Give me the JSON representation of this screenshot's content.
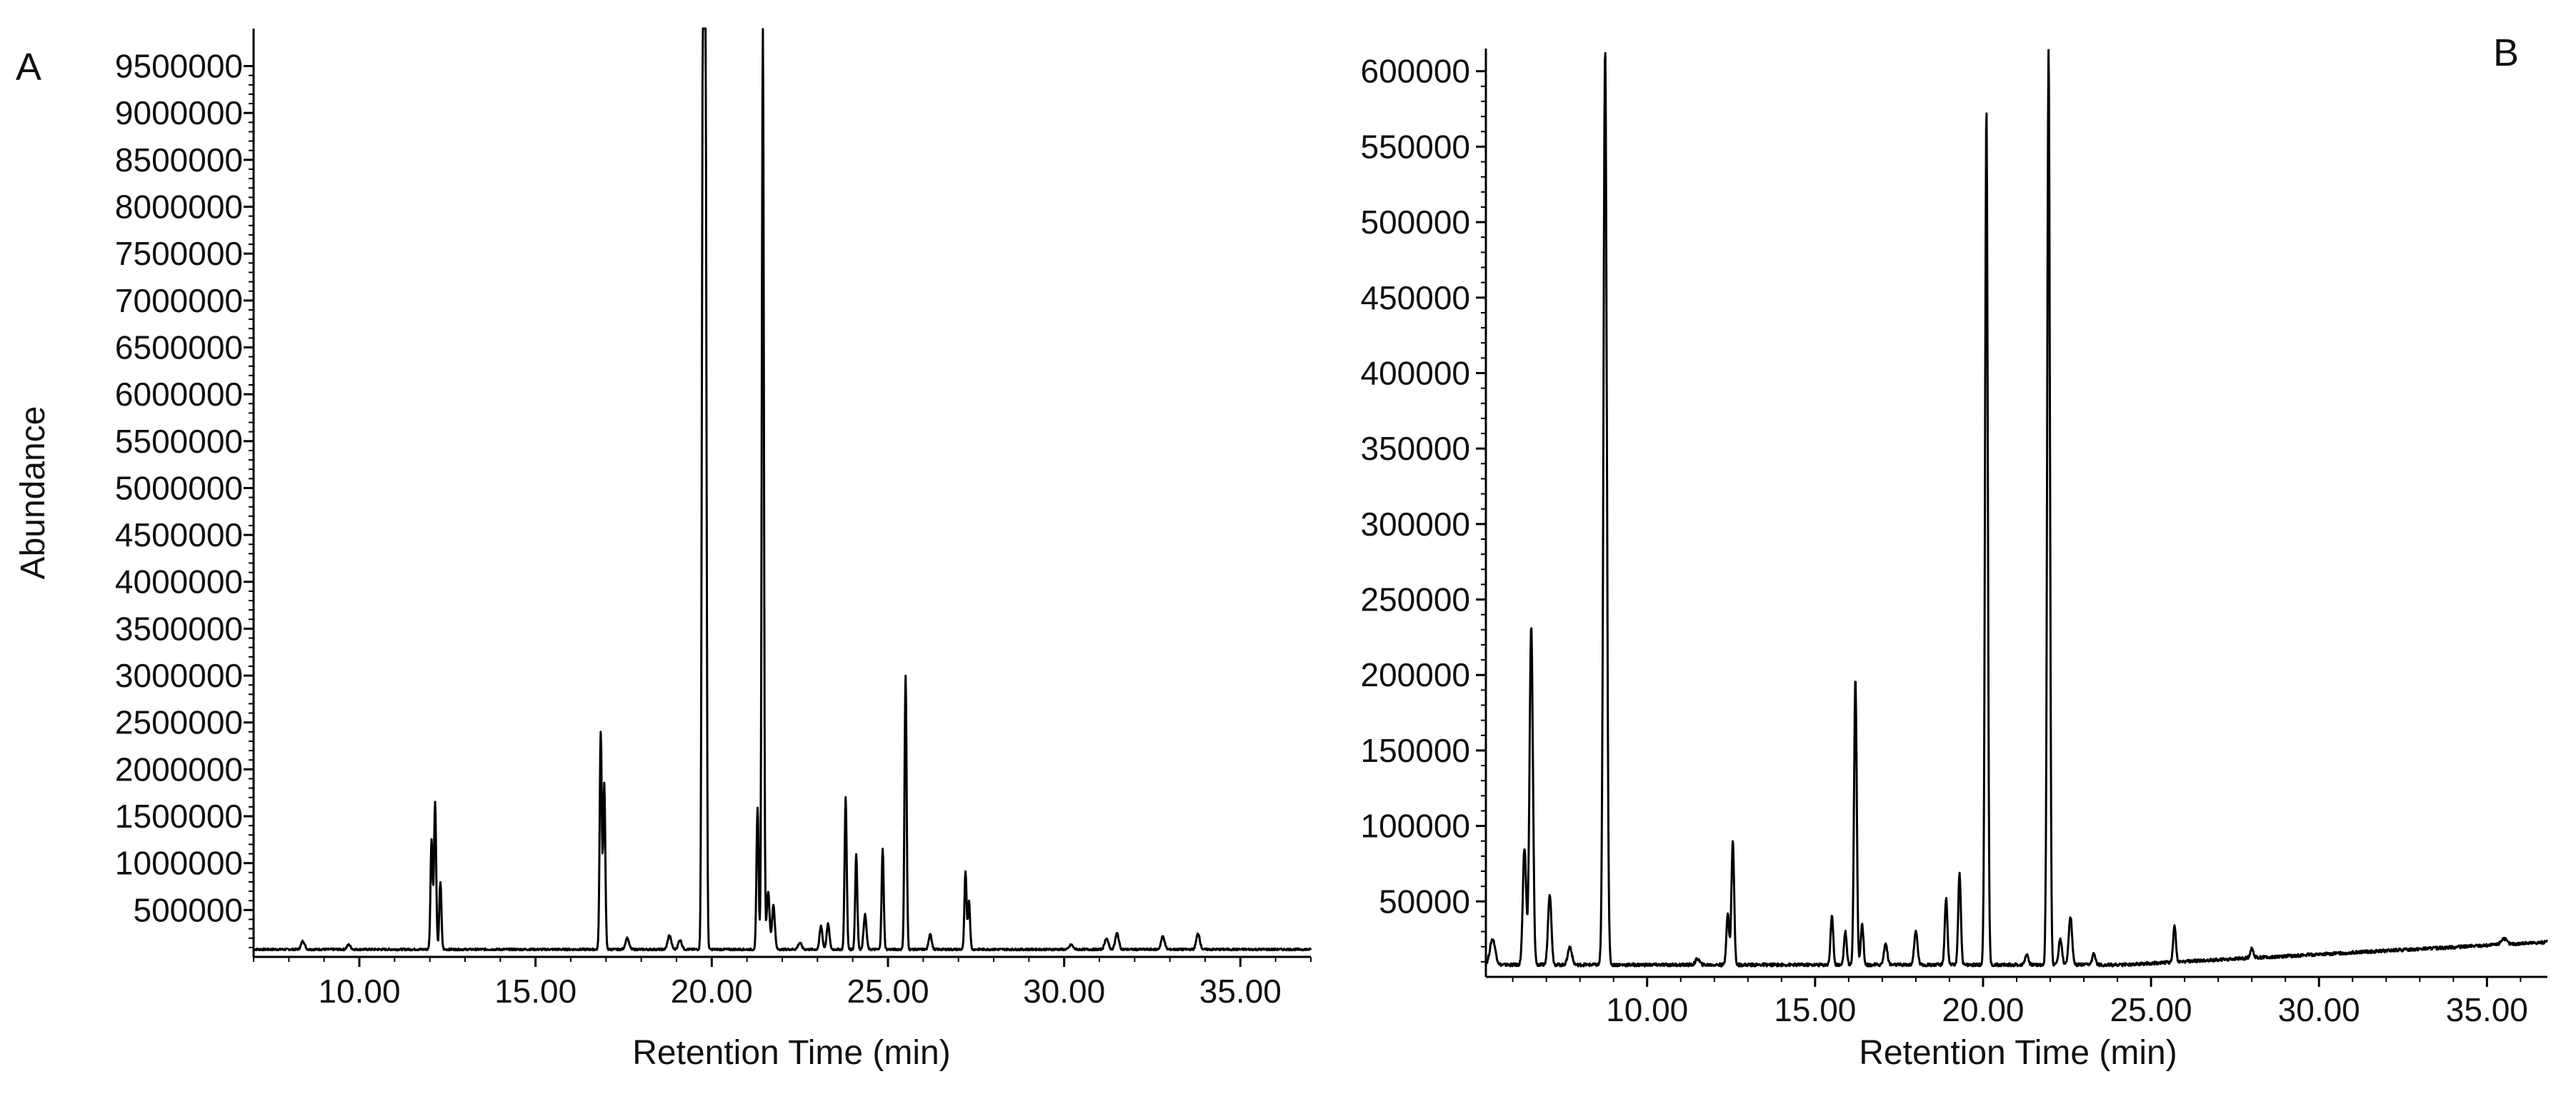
{
  "chart_data": [
    {
      "type": "line",
      "panel_label": "A",
      "title": "",
      "xlabel": "Retention Time (min)",
      "ylabel": "Abundance",
      "xlim": [
        7.0,
        37.0
      ],
      "ylim": [
        0,
        9900000
      ],
      "grid": false,
      "legend": "none",
      "xticks": [
        10,
        15,
        20,
        25,
        30,
        35
      ],
      "xtick_labels": [
        "10.00",
        "15.00",
        "20.00",
        "25.00",
        "30.00",
        "35.00"
      ],
      "yticks": [
        500000,
        1000000,
        1500000,
        2000000,
        2500000,
        3000000,
        3500000,
        4000000,
        4500000,
        5000000,
        5500000,
        6000000,
        6500000,
        7000000,
        7500000,
        8000000,
        8500000,
        9000000,
        9500000
      ],
      "ytick_labels": [
        "500000",
        "1000000",
        "1500000",
        "2000000",
        "2500000",
        "3000000",
        "3500000",
        "4000000",
        "4500000",
        "5000000",
        "5500000",
        "6000000",
        "6500000",
        "7000000",
        "7500000",
        "8000000",
        "8500000",
        "9000000",
        "9500000"
      ],
      "baseline": 80000,
      "peaks": [
        {
          "x": 8.4,
          "y": 170000,
          "w": 0.05
        },
        {
          "x": 9.7,
          "y": 130000,
          "w": 0.05
        },
        {
          "x": 12.05,
          "y": 1250000,
          "w": 0.03
        },
        {
          "x": 12.15,
          "y": 1650000,
          "w": 0.03
        },
        {
          "x": 12.3,
          "y": 800000,
          "w": 0.03
        },
        {
          "x": 16.85,
          "y": 2400000,
          "w": 0.03
        },
        {
          "x": 16.95,
          "y": 1850000,
          "w": 0.03
        },
        {
          "x": 17.6,
          "y": 200000,
          "w": 0.05
        },
        {
          "x": 18.8,
          "y": 230000,
          "w": 0.05
        },
        {
          "x": 19.1,
          "y": 180000,
          "w": 0.05
        },
        {
          "x": 19.75,
          "y": 9900000,
          "w": 0.03
        },
        {
          "x": 19.82,
          "y": 9900000,
          "w": 0.03
        },
        {
          "x": 21.3,
          "y": 1600000,
          "w": 0.03
        },
        {
          "x": 21.45,
          "y": 9900000,
          "w": 0.03
        },
        {
          "x": 21.6,
          "y": 700000,
          "w": 0.04
        },
        {
          "x": 21.75,
          "y": 550000,
          "w": 0.04
        },
        {
          "x": 22.5,
          "y": 150000,
          "w": 0.05
        },
        {
          "x": 23.1,
          "y": 330000,
          "w": 0.04
        },
        {
          "x": 23.3,
          "y": 350000,
          "w": 0.04
        },
        {
          "x": 23.8,
          "y": 1700000,
          "w": 0.03
        },
        {
          "x": 24.1,
          "y": 1100000,
          "w": 0.03
        },
        {
          "x": 24.35,
          "y": 450000,
          "w": 0.04
        },
        {
          "x": 24.85,
          "y": 1150000,
          "w": 0.03
        },
        {
          "x": 25.5,
          "y": 3000000,
          "w": 0.03
        },
        {
          "x": 26.2,
          "y": 250000,
          "w": 0.04
        },
        {
          "x": 27.2,
          "y": 900000,
          "w": 0.03
        },
        {
          "x": 27.3,
          "y": 600000,
          "w": 0.03
        },
        {
          "x": 30.2,
          "y": 130000,
          "w": 0.05
        },
        {
          "x": 31.2,
          "y": 200000,
          "w": 0.05
        },
        {
          "x": 31.5,
          "y": 250000,
          "w": 0.05
        },
        {
          "x": 32.8,
          "y": 220000,
          "w": 0.05
        },
        {
          "x": 33.8,
          "y": 250000,
          "w": 0.05
        }
      ]
    },
    {
      "type": "line",
      "panel_label": "B",
      "title": "",
      "xlabel": "Retention Time (min)",
      "ylabel": "",
      "xlim": [
        5.2,
        36.8
      ],
      "ylim": [
        0,
        615000
      ],
      "grid": false,
      "legend": "none",
      "xticks": [
        10,
        15,
        20,
        25,
        30,
        35
      ],
      "xtick_labels": [
        "10.00",
        "15.00",
        "20.00",
        "25.00",
        "30.00",
        "35.00"
      ],
      "yticks": [
        50000,
        100000,
        150000,
        200000,
        250000,
        300000,
        350000,
        400000,
        450000,
        500000,
        550000,
        600000
      ],
      "ytick_labels": [
        "50000",
        "100000",
        "150000",
        "200000",
        "250000",
        "300000",
        "350000",
        "400000",
        "450000",
        "500000",
        "550000",
        "600000"
      ],
      "baseline": 8000,
      "peaks": [
        {
          "x": 5.4,
          "y": 25000,
          "w": 0.08
        },
        {
          "x": 6.35,
          "y": 85000,
          "w": 0.05
        },
        {
          "x": 6.55,
          "y": 232000,
          "w": 0.05
        },
        {
          "x": 7.1,
          "y": 55000,
          "w": 0.05
        },
        {
          "x": 7.7,
          "y": 20000,
          "w": 0.06
        },
        {
          "x": 8.75,
          "y": 615000,
          "w": 0.05
        },
        {
          "x": 11.5,
          "y": 12000,
          "w": 0.06
        },
        {
          "x": 12.4,
          "y": 42000,
          "w": 0.04
        },
        {
          "x": 12.55,
          "y": 90000,
          "w": 0.04
        },
        {
          "x": 15.5,
          "y": 40000,
          "w": 0.04
        },
        {
          "x": 15.9,
          "y": 30000,
          "w": 0.04
        },
        {
          "x": 16.2,
          "y": 198000,
          "w": 0.04
        },
        {
          "x": 16.4,
          "y": 35000,
          "w": 0.04
        },
        {
          "x": 17.1,
          "y": 22000,
          "w": 0.05
        },
        {
          "x": 18.0,
          "y": 30000,
          "w": 0.05
        },
        {
          "x": 18.9,
          "y": 52000,
          "w": 0.04
        },
        {
          "x": 19.3,
          "y": 68000,
          "w": 0.04
        },
        {
          "x": 20.1,
          "y": 575000,
          "w": 0.04
        },
        {
          "x": 21.3,
          "y": 15000,
          "w": 0.05
        },
        {
          "x": 21.95,
          "y": 615000,
          "w": 0.04
        },
        {
          "x": 22.3,
          "y": 25000,
          "w": 0.05
        },
        {
          "x": 22.6,
          "y": 40000,
          "w": 0.05
        },
        {
          "x": 23.3,
          "y": 15000,
          "w": 0.05
        },
        {
          "x": 25.7,
          "y": 32000,
          "w": 0.04
        },
        {
          "x": 28.0,
          "y": 14000,
          "w": 0.05
        },
        {
          "x": 35.5,
          "y": 12000,
          "w": 0.08
        }
      ],
      "drift_end": 15000
    }
  ]
}
